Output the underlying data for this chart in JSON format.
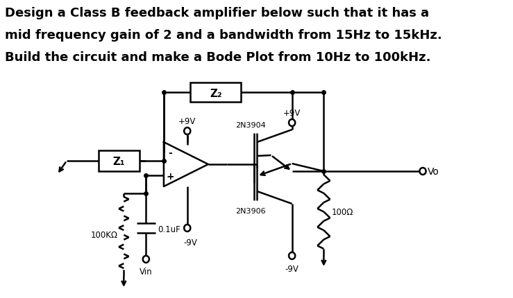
{
  "title_line1": "Design a Class B feedback amplifier below such that it has a",
  "title_line2": "mid frequency gain of 2 and a bandwidth from 15Hz to 15kHz.",
  "title_line3": "Build the circuit and make a Bode Plot from 10Hz to 100kHz.",
  "bg_color": "#ffffff",
  "text_color": "#000000",
  "title_fontsize": 13.0,
  "circuit_color": "#000000",
  "label_z2": "Z₂",
  "label_z1": "Z₁",
  "label_plus9v_left": "+9V",
  "label_plus9v_right": "+9V",
  "label_minus9v_opamp": "-9V",
  "label_minus9v_right": "-9V",
  "label_2n3904": "2N3904",
  "label_2n3906": "2N3906",
  "label_100k": "100KΩ",
  "label_01uf": "0.1uF",
  "label_100ohm": "100Ω",
  "label_vo": "Vo",
  "label_vin": "Vin",
  "lw": 1.8
}
